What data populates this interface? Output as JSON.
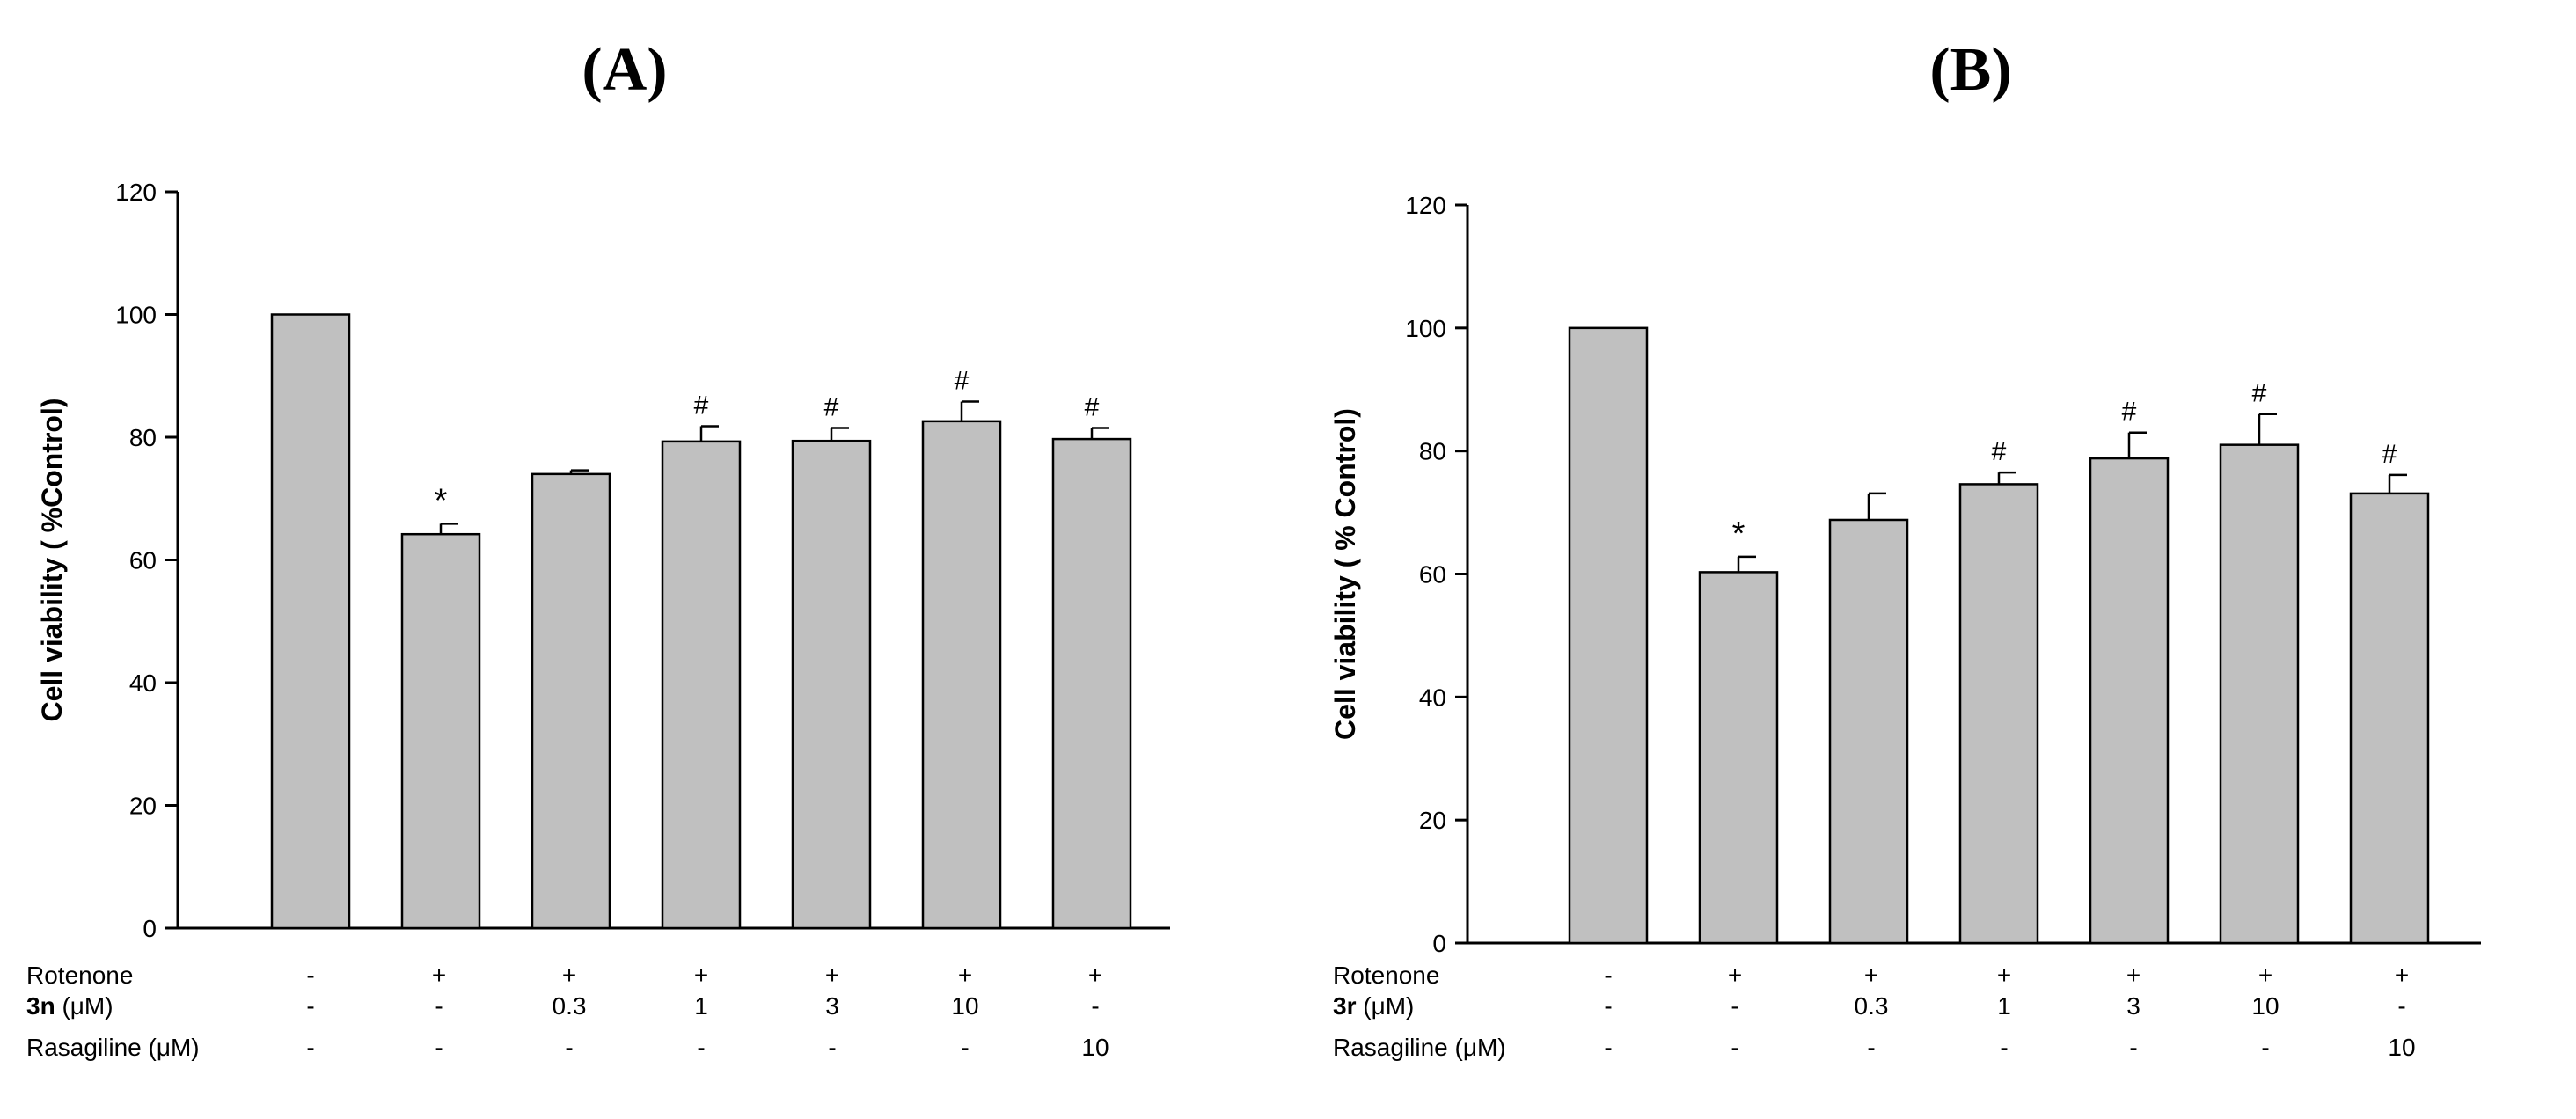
{
  "chart_data": [
    {
      "panel_label": "(A)",
      "type": "bar",
      "ylabel": "Cell viability ( %Control)",
      "ylim": [
        0,
        120
      ],
      "yticks": [
        0,
        20,
        40,
        60,
        80,
        100,
        120
      ],
      "values": [
        100,
        64.2,
        74.0,
        79.3,
        79.4,
        82.6,
        79.7
      ],
      "errors": [
        0,
        1.7,
        0.6,
        2.5,
        2.1,
        3.2,
        1.8
      ],
      "annotations": [
        "",
        "*",
        "",
        "#",
        "#",
        "#",
        "#"
      ],
      "bar_color": "#c0c0c0",
      "conditions": [
        {
          "label": "Rotenone",
          "label_bold": "",
          "unit": "",
          "values": [
            "-",
            "+",
            "+",
            "+",
            "+",
            "+",
            "+"
          ]
        },
        {
          "label": "",
          "label_bold": "3n",
          "unit": " (μM)",
          "values": [
            "-",
            "-",
            "0.3",
            "1",
            "3",
            "10",
            "-"
          ]
        },
        {
          "label": "Rasagiline (μM)",
          "label_bold": "",
          "unit": "",
          "values": [
            "-",
            "-",
            "-",
            "-",
            "-",
            "-",
            "10"
          ]
        }
      ]
    },
    {
      "panel_label": "(B)",
      "type": "bar",
      "ylabel": "Cell viability ( % Control)",
      "ylim": [
        0,
        120
      ],
      "yticks": [
        0,
        20,
        40,
        60,
        80,
        100,
        120
      ],
      "values": [
        100,
        60.3,
        68.8,
        74.6,
        78.8,
        81.0,
        73.1
      ],
      "errors": [
        0,
        2.5,
        4.3,
        1.9,
        4.2,
        5.0,
        3.0
      ],
      "annotations": [
        "",
        "*",
        "",
        "#",
        "#",
        "#",
        "#"
      ],
      "bar_color": "#c0c0c0",
      "conditions": [
        {
          "label": "Rotenone",
          "label_bold": "",
          "unit": "",
          "values": [
            "-",
            "+",
            "+",
            "+",
            "+",
            "+",
            "+"
          ]
        },
        {
          "label": "",
          "label_bold": "3r",
          "unit": " (μM)",
          "values": [
            "-",
            "-",
            "0.3",
            "1",
            "3",
            "10",
            "-"
          ]
        },
        {
          "label": "Rasagiline (μM)",
          "label_bold": "",
          "unit": "",
          "values": [
            "-",
            "-",
            "-",
            "-",
            "-",
            "-",
            "10"
          ]
        }
      ]
    }
  ]
}
